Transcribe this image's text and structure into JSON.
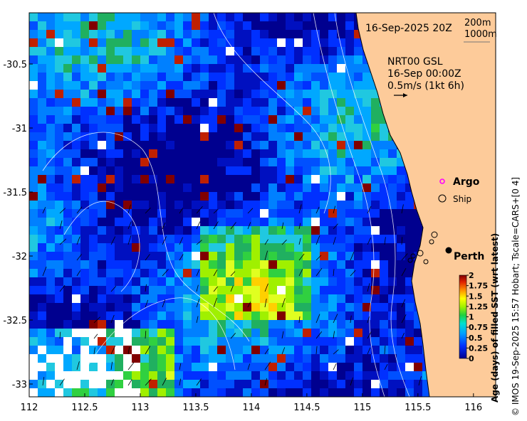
{
  "map": {
    "date_label": "16-Sep-2025 20Z",
    "contours": {
      "line1": "200m",
      "line2": "1000m"
    },
    "current_product": {
      "line1": "NRT00 GSL",
      "line2": "16-Sep 00:00Z",
      "line3": "0.5m/s (1kt 6h)"
    },
    "legend": {
      "argo_label": "Argo",
      "ship_label": "Ship",
      "argo_color": "#ff00ff"
    },
    "city": {
      "name": "Perth",
      "lon": 115.86,
      "lat": -31.95
    },
    "x_ticks": [
      "112",
      "112.5",
      "113",
      "113.5",
      "114",
      "114.5",
      "115",
      "115.5",
      "116"
    ],
    "y_ticks": [
      "-30.5",
      "-31",
      "-31.5",
      "-32",
      "-32.5",
      "-33"
    ],
    "lon_range": [
      112,
      116.2
    ],
    "lat_range": [
      -33.1,
      -30.1
    ],
    "land_color": "#fdcb9a"
  },
  "colorbar": {
    "title": "Age (days) of filled SST (wrt latest)",
    "ticks": [
      "2",
      "1.75",
      "1.5",
      "1.25",
      "1",
      "0.75",
      "0.5",
      "0.25",
      "0"
    ],
    "range": [
      0,
      2
    ]
  },
  "credit": "© IMOS 19-Sep-2025 15:57 Hobart; Tscale=CARS+[0 4]"
}
